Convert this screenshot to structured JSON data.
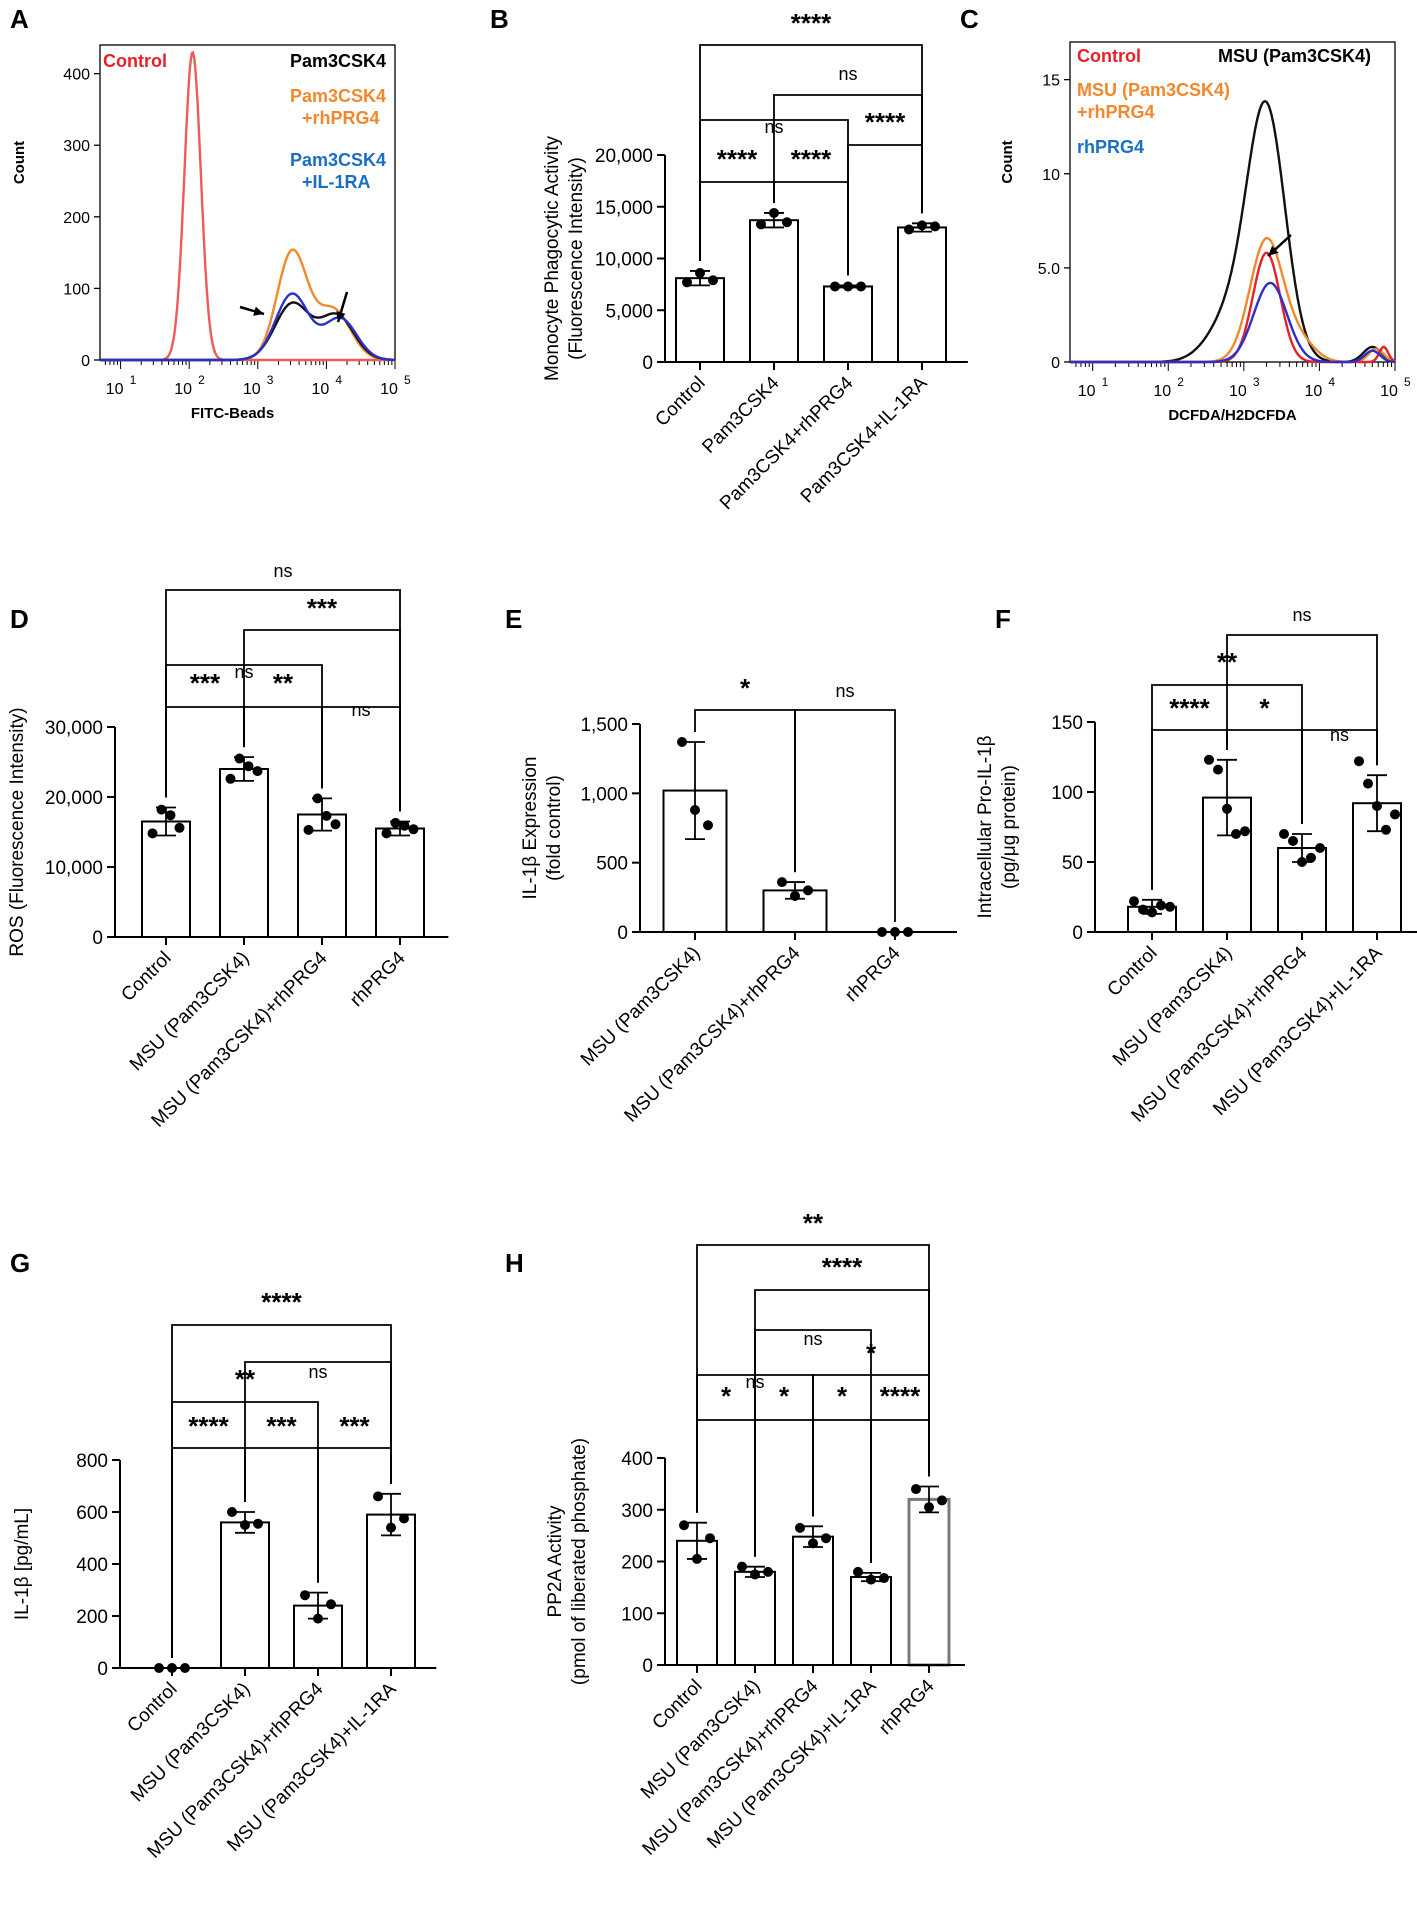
{
  "chart_data": [
    {
      "id": "A",
      "type": "histogram",
      "letter": "A",
      "xlabel": "FITC-Beads",
      "ylabel": "Count",
      "yticks": [
        "0",
        "100",
        "200",
        "300",
        "400"
      ],
      "xticks": [
        "10",
        "10",
        "10",
        "10",
        "10"
      ],
      "xexp": [
        "1",
        "2",
        "3",
        "4",
        "5"
      ],
      "ylim": [
        0,
        440
      ],
      "legend": [
        {
          "label": "Control",
          "color": "#e8202a"
        },
        {
          "label": "Pam3CSK4",
          "color": "#000000"
        },
        {
          "label": "Pam3CSK4",
          "label2": "+rhPRG4",
          "color": "#f0892e"
        },
        {
          "label": "Pam3CSK4",
          "label2": "+IL-1RA",
          "color": "#1a6fc4"
        }
      ],
      "colors": {
        "control": "#f05a5a",
        "pam": "#111111",
        "rhprg4": "#f0892e",
        "il1ra": "#2a30c8"
      }
    },
    {
      "id": "B",
      "type": "bar",
      "letter": "B",
      "ylabel": "Monocyte Phagocytic Activity",
      "ylabel2": "(Fluorescence Intensity)",
      "categories": [
        "Control",
        "Pam3CSK4",
        "Pam3CSK4+rhPRG4",
        "Pam3CSK4+IL-1RA"
      ],
      "values": [
        8100,
        13700,
        7300,
        13000
      ],
      "errors": [
        700,
        700,
        100,
        400
      ],
      "points": [
        [
          7700,
          8600,
          7900
        ],
        [
          13300,
          14400,
          13500
        ],
        [
          7300,
          7300,
          7300
        ],
        [
          12800,
          13200,
          13100
        ]
      ],
      "ylim": [
        0,
        20000
      ],
      "yticks": [
        "0",
        "5,000",
        "10,000",
        "15,000",
        "20,000"
      ],
      "sig": [
        {
          "label": "****",
          "from": 0,
          "to": 1
        },
        {
          "label": "****",
          "from": 1,
          "to": 2
        },
        {
          "label": "****",
          "from": 2,
          "to": 3
        },
        {
          "label": "ns",
          "from": 0,
          "to": 2
        },
        {
          "label": "ns",
          "from": 1,
          "to": 3
        },
        {
          "label": "****",
          "from": 0,
          "to": 3
        }
      ]
    },
    {
      "id": "C",
      "type": "histogram",
      "letter": "C",
      "xlabel": "DCFDA/H2DCFDA",
      "ylabel": "Count",
      "yticks": [
        "0",
        "5.0",
        "10",
        "15"
      ],
      "xticks": [
        "10",
        "10",
        "10",
        "10",
        "10"
      ],
      "xexp": [
        "1",
        "2",
        "3",
        "4",
        "5"
      ],
      "ylim": [
        0,
        17
      ],
      "legend": [
        {
          "label": "Control",
          "color": "#e8202a"
        },
        {
          "label": "MSU (Pam3CSK4)",
          "color": "#000000"
        },
        {
          "label": "MSU (Pam3CSK4)",
          "label2": "+rhPRG4",
          "color": "#f0892e"
        },
        {
          "label": "rhPRG4",
          "color": "#1a6fc4"
        }
      ],
      "colors": {
        "control": "#e8202a",
        "msu": "#111111",
        "rhprg4": "#f0892e",
        "rh": "#2a30c8"
      }
    },
    {
      "id": "D",
      "type": "bar",
      "letter": "D",
      "ylabel": "ROS (Fluorescence Intensity)",
      "ylabel2": "",
      "categories": [
        "Control",
        "MSU (Pam3CSK4)",
        "MSU (Pam3CSK4)+rhPRG4",
        "rhPRG4"
      ],
      "values": [
        16500,
        24000,
        17500,
        15500
      ],
      "errors": [
        2000,
        1700,
        2300,
        1000
      ],
      "points": [
        [
          14800,
          18200,
          17400,
          15600
        ],
        [
          22600,
          25500,
          24400,
          23700
        ],
        [
          15300,
          19800,
          17300,
          16100
        ],
        [
          14800,
          16300,
          15900,
          15400
        ]
      ],
      "ylim": [
        0,
        30000
      ],
      "yticks": [
        "0",
        "10,000",
        "20,000",
        "30,000"
      ],
      "sig": [
        {
          "label": "***",
          "from": 0,
          "to": 1
        },
        {
          "label": "**",
          "from": 1,
          "to": 2
        },
        {
          "label": "ns",
          "from": 2,
          "to": 3
        },
        {
          "label": "ns",
          "from": 0,
          "to": 2
        },
        {
          "label": "***",
          "from": 1,
          "to": 3
        },
        {
          "label": "ns",
          "from": 0,
          "to": 3
        }
      ]
    },
    {
      "id": "E",
      "type": "bar",
      "letter": "E",
      "ylabel": "IL-1β Expression",
      "ylabel2": "(fold control)",
      "categories": [
        "MSU (Pam3CSK4)",
        "MSU (Pam3CSK4)+rhPRG4",
        "rhPRG4"
      ],
      "values": [
        1020,
        300,
        0
      ],
      "errors": [
        350,
        60,
        0
      ],
      "points": [
        [
          1370,
          880,
          770
        ],
        [
          360,
          260,
          300
        ],
        [
          0,
          0,
          0
        ]
      ],
      "ylim": [
        0,
        1500
      ],
      "yticks": [
        "0",
        "500",
        "1,000",
        "1,500"
      ],
      "sig": [
        {
          "label": "*",
          "from": 0,
          "to": 1
        },
        {
          "label": "ns",
          "from": 1,
          "to": 2
        }
      ]
    },
    {
      "id": "F",
      "type": "bar",
      "letter": "F",
      "ylabel": "Intracellular Pro-IL-1β",
      "ylabel2": "(pg/μg protein)",
      "categories": [
        "Control",
        "MSU (Pam3CSK4)",
        "MSU (Pam3CSK4)+rhPRG4",
        "MSU (Pam3CSK4)+IL-1RA"
      ],
      "values": [
        18,
        96,
        60,
        92
      ],
      "errors": [
        5,
        27,
        10,
        20
      ],
      "points": [
        [
          22,
          16,
          14,
          19,
          18
        ],
        [
          123,
          116,
          88,
          70,
          72
        ],
        [
          70,
          65,
          50,
          53,
          60
        ],
        [
          122,
          106,
          90,
          73,
          84
        ]
      ],
      "ylim": [
        0,
        150
      ],
      "yticks": [
        "0",
        "50",
        "100",
        "150"
      ],
      "sig": [
        {
          "label": "****",
          "from": 0,
          "to": 1
        },
        {
          "label": "*",
          "from": 1,
          "to": 2
        },
        {
          "label": "ns",
          "from": 2,
          "to": 3
        },
        {
          "label": "**",
          "from": 0,
          "to": 2
        },
        {
          "label": "ns",
          "from": 1,
          "to": 3
        }
      ]
    },
    {
      "id": "G",
      "type": "bar",
      "letter": "G",
      "ylabel": "IL-1β [pg/mL]",
      "ylabel2": "",
      "categories": [
        "Control",
        "MSU (Pam3CSK4)",
        "MSU (Pam3CSK4)+rhPRG4",
        "MSU (Pam3CSK4)+IL-1RA"
      ],
      "values": [
        0,
        560,
        240,
        590
      ],
      "errors": [
        0,
        40,
        50,
        80
      ],
      "points": [
        [
          0,
          0,
          0
        ],
        [
          600,
          550,
          555
        ],
        [
          280,
          190,
          245
        ],
        [
          660,
          540,
          575
        ]
      ],
      "ylim": [
        0,
        800
      ],
      "yticks": [
        "0",
        "200",
        "400",
        "600",
        "800"
      ],
      "sig": [
        {
          "label": "****",
          "from": 0,
          "to": 1
        },
        {
          "label": "***",
          "from": 1,
          "to": 2
        },
        {
          "label": "***",
          "from": 2,
          "to": 3
        },
        {
          "label": "**",
          "from": 0,
          "to": 2
        },
        {
          "label": "ns",
          "from": 1,
          "to": 3
        },
        {
          "label": "****",
          "from": 0,
          "to": 3
        }
      ]
    },
    {
      "id": "H",
      "type": "bar",
      "letter": "H",
      "ylabel": "PP2A Activity",
      "ylabel2": "(pmol of liberated phosphate)",
      "categories": [
        "Control",
        "MSU (Pam3CSK4)",
        "MSU (Pam3CSK4)+rhPRG4",
        "MSU (Pam3CSK4)+IL-1RA",
        "rhPRG4"
      ],
      "values": [
        240,
        180,
        248,
        170,
        320
      ],
      "errors": [
        35,
        10,
        20,
        8,
        25
      ],
      "points": [
        [
          270,
          205,
          245
        ],
        [
          190,
          175,
          180
        ],
        [
          265,
          235,
          245
        ],
        [
          180,
          165,
          168
        ],
        [
          340,
          305,
          318
        ]
      ],
      "ylim": [
        0,
        400
      ],
      "yticks": [
        "0",
        "100",
        "200",
        "300",
        "400"
      ],
      "gray_last": true,
      "sig": [
        {
          "label": "*",
          "from": 0,
          "to": 1
        },
        {
          "label": "*",
          "from": 1,
          "to": 2
        },
        {
          "label": "*",
          "from": 2,
          "to": 3
        },
        {
          "label": "****",
          "from": 3,
          "to": 4
        },
        {
          "label": "ns",
          "from": 0,
          "to": 2
        },
        {
          "label": "*",
          "from": 2,
          "to": 4
        },
        {
          "label": "ns",
          "from": 1,
          "to": 3
        },
        {
          "label": "****",
          "from": 1,
          "to": 4
        },
        {
          "label": "**",
          "from": 0,
          "to": 4
        }
      ]
    }
  ]
}
